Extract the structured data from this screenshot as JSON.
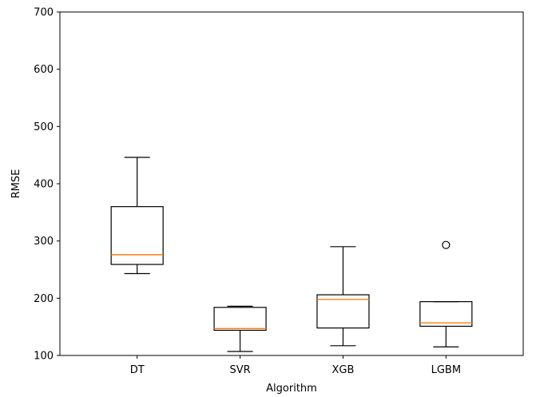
{
  "chart_data": {
    "type": "box",
    "title": "",
    "xlabel": "Algorithm",
    "ylabel": "RMSE",
    "ylim": [
      100,
      700
    ],
    "yticks": [
      100,
      200,
      300,
      400,
      500,
      600,
      700
    ],
    "grid": false,
    "categories": [
      "DT",
      "SVR",
      "XGB",
      "LGBM"
    ],
    "boxes": [
      {
        "label": "DT",
        "whisker_low": 243,
        "q1": 259,
        "median": 276,
        "q3": 360,
        "whisker_high": 446,
        "outliers": []
      },
      {
        "label": "SVR",
        "whisker_low": 107,
        "q1": 144,
        "median": 147,
        "q3": 184,
        "whisker_high": 186,
        "outliers": []
      },
      {
        "label": "XGB",
        "whisker_low": 117,
        "q1": 148,
        "median": 198,
        "q3": 206,
        "whisker_high": 290,
        "outliers": []
      },
      {
        "label": "LGBM",
        "whisker_low": 115,
        "q1": 151,
        "median": 157,
        "q3": 194,
        "whisker_high": 194,
        "outliers": [
          293
        ]
      }
    ],
    "colors": {
      "box": "#000000",
      "median": "#ff7f0e",
      "outlier": "#000000"
    }
  }
}
